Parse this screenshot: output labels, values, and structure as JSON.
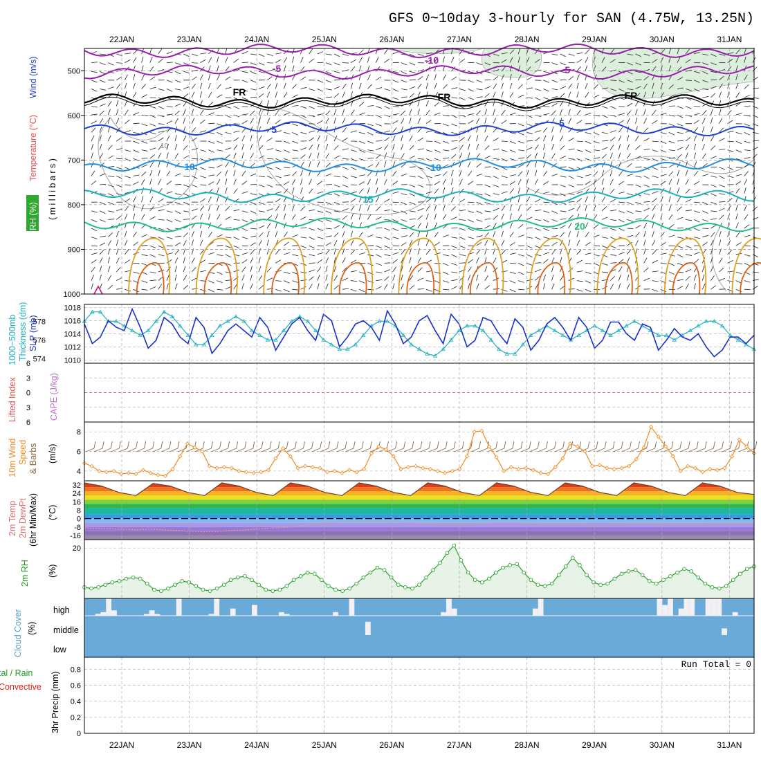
{
  "title": "GFS 0~10day 3-hourly for SAN (4.75W, 13.25N)",
  "dates": [
    "22JAN",
    "23JAN",
    "24JAN",
    "25JAN",
    "26JAN",
    "27JAN",
    "28JAN",
    "29JAN",
    "30JAN",
    "31JAN"
  ],
  "colors": {
    "purple": "#9a1db0",
    "black": "#000000",
    "blue": "#1f3fd0",
    "lightblue": "#1f8fe0",
    "cyan": "#1ab0b8",
    "green": "#20c080",
    "orange": "#e0a020",
    "darkorange": "#e06010",
    "slp": "#1630c8",
    "thick": "#20b0c0",
    "wind10m": "#f08a20",
    "rh": "#1a9a1a",
    "cloud": "#6aaad8",
    "precipgreen": "#20a020",
    "precipred": "#e02020"
  },
  "labels": {
    "upper_rh": "RH (%)",
    "upper_temp": "Temperature (°C)",
    "upper_wind": "Wind (m/s)",
    "upper_axis": "( m i l l i b a r s )",
    "thick_a": "1000~500mb",
    "thick_b": "Thickness (dm)",
    "slp": "SLP (mb)",
    "li": "Lifted Index",
    "cape": "CAPE (J/kg)",
    "w10_a": "10m Wind",
    "w10_b": "Speed",
    "w10_c": "& Barbs",
    "w10_unit": "(m/s)",
    "temp_a": "2m Temp",
    "temp_b": "2m DewPt",
    "temp_c": "(6hr Min/Max)",
    "temp_unit": "(°C)",
    "rh2m": "2m RH",
    "rh_unit": "(%)",
    "cloud": "Cloud Cover",
    "cloud_unit": "(%)",
    "cloud_high": "high",
    "cloud_middle": "middle",
    "cloud_low": "low",
    "precip_a": "tal / Rain",
    "precip_b": "Convective",
    "precip_axis": "3hr Precip (mm)",
    "run_total": "Run Total = 0"
  },
  "chart_data": [
    {
      "type": "line",
      "panel": "upper-air cross section",
      "y_axis": "millibars",
      "y_ticks": [
        500,
        600,
        700,
        800,
        900,
        1000
      ],
      "ylim": [
        1000,
        450
      ],
      "isotherm_labels": [
        "-10",
        "-5",
        "FR",
        "5",
        "10",
        "15",
        "20"
      ],
      "rh_contour_label": "10",
      "temperature_levels": [
        {
          "label": "-10",
          "color": "purple",
          "mean_pressure": 455
        },
        {
          "label": "-5",
          "color": "purple",
          "mean_pressure": 503
        },
        {
          "label": "FR",
          "color": "black",
          "mean_pressure": 568
        },
        {
          "label": "5",
          "color": "blue",
          "mean_pressure": 630
        },
        {
          "label": "10",
          "color": "lightblue",
          "mean_pressure": 712
        },
        {
          "label": "15",
          "color": "cyan",
          "mean_pressure": 780
        },
        {
          "label": "20",
          "color": "green",
          "mean_pressure": 845
        }
      ]
    },
    {
      "type": "line",
      "panel": "thickness and SLP",
      "series": [
        {
          "name": "SLP (mb)",
          "axis": "right",
          "ticks": [
            1010,
            1012,
            1014,
            1016,
            1018
          ],
          "values": [
            1015.5,
            1012.5,
            1013.5,
            1016,
            1015,
            1014.5,
            1017.8,
            1015,
            1011.8,
            1013,
            1016.5,
            1015.5,
            1013.5,
            1012.5,
            1016.5,
            1015,
            1011,
            1012.5,
            1014.5,
            1015.5,
            1014.5,
            1013.5,
            1016.5,
            1015,
            1011.5,
            1013.5,
            1015.5,
            1016.5,
            1014.5,
            1013,
            1017,
            1016,
            1012,
            1013.5,
            1015.5,
            1016,
            1015,
            1013,
            1017.5,
            1015.5,
            1012.5,
            1013.5,
            1016,
            1016.8,
            1014.5,
            1012.5,
            1017,
            1015.5,
            1012,
            1013,
            1016.5,
            1016,
            1014,
            1012.5,
            1016.3,
            1015,
            1011.5,
            1013,
            1015.5,
            1016.5,
            1015,
            1013,
            1016.5,
            1015,
            1011.8,
            1013,
            1015.8,
            1015.8,
            1014,
            1013,
            1015.5,
            1015,
            1011.5,
            1013,
            1014.8,
            1013.5,
            1013,
            1014,
            1012,
            1010.5,
            1011.5,
            1013.5,
            1013.5,
            1012.5,
            1013.8
          ]
        },
        {
          "name": "1000~500mb Thickness (dm)",
          "axis": "left",
          "ticks": [
            574,
            576,
            578
          ],
          "values": [
            578,
            579,
            579,
            578,
            578,
            577.5,
            577,
            576.5,
            577,
            578,
            579,
            578.5,
            577.5,
            576.5,
            575.5,
            575.5,
            576.5,
            577.5,
            578,
            578.5,
            578,
            577,
            576.5,
            576,
            576,
            577,
            578,
            578.5,
            578,
            577,
            576,
            575.5,
            575,
            575,
            575.5,
            576.5,
            577.5,
            578,
            578,
            577.5,
            576.5,
            575.5,
            575,
            574.5,
            574.3,
            575,
            576,
            577,
            577.5,
            577.5,
            577,
            576,
            575,
            574.5,
            574.5,
            575.5,
            576.5,
            577,
            577.5,
            577,
            576.5,
            576,
            576.5,
            577,
            577.5,
            577,
            576.5,
            577,
            577.5,
            578,
            577.5,
            577,
            576.5,
            576.5,
            576,
            576.5,
            577,
            577.5,
            578,
            578,
            577.5,
            576.5,
            576,
            575.5,
            575
          ]
        }
      ]
    },
    {
      "type": "line",
      "panel": "lifted index and CAPE",
      "y_ticks": [
        "6",
        "3",
        "0",
        "3",
        "6"
      ],
      "series": [
        {
          "name": "Lifted Index",
          "values": []
        },
        {
          "name": "CAPE (J/kg)",
          "values": []
        }
      ]
    },
    {
      "type": "line",
      "panel": "10m wind",
      "y_ticks": [
        4,
        6,
        8
      ],
      "ylim": [
        3,
        9
      ],
      "series": [
        {
          "name": "10m Wind Speed",
          "values": [
            4.8,
            4.5,
            4,
            3.9,
            4,
            3.7,
            3.8,
            3.7,
            4.1,
            3.8,
            3.6,
            3.5,
            4.2,
            5.5,
            6.8,
            6.4,
            6,
            4.5,
            4.3,
            4.4,
            4.3,
            4,
            3.9,
            3.8,
            3.9,
            4.1,
            5.3,
            6.3,
            5.5,
            4.3,
            4.5,
            4.4,
            4.3,
            3.9,
            4,
            3.8,
            4.1,
            3.9,
            4.2,
            5.8,
            6.5,
            6.2,
            5.5,
            4.2,
            4.4,
            4.5,
            4.3,
            4.2,
            4,
            3.8,
            4,
            4.2,
            5.5,
            8,
            8.1,
            6.5,
            5.4,
            4,
            4.4,
            4.2,
            4.3,
            4.1,
            3.8,
            3.7,
            4.4,
            5.3,
            6.8,
            6.5,
            6,
            4.5,
            4.6,
            4.3,
            4.2,
            4.3,
            4.5,
            5.2,
            6.4,
            8.5,
            7.5,
            6.5,
            5.5,
            4,
            4.5,
            4.3,
            3.9,
            4.2,
            4.1,
            4.3,
            5.5,
            7.2,
            6.5,
            5.8
          ]
        }
      ]
    },
    {
      "type": "area",
      "panel": "2m temperature and dewpoint",
      "y_ticks": [
        32,
        24,
        16,
        8,
        0,
        -8,
        -16
      ],
      "ylim": [
        -20,
        36
      ],
      "series": [
        {
          "name": "2m Temp",
          "values": [
            34,
            31,
            25,
            22,
            33.5,
            31,
            25,
            22,
            34,
            31,
            25,
            22,
            34,
            31,
            25,
            22,
            34,
            31,
            25,
            22,
            34,
            31,
            25,
            22,
            34,
            31,
            25,
            22,
            34,
            31,
            25,
            22,
            34,
            31,
            25,
            22,
            34,
            31,
            25,
            23
          ]
        },
        {
          "name": "2m DewPt",
          "values": [
            -9,
            -9.5,
            -10,
            -10.5,
            -10,
            -11,
            -12,
            -12.5,
            -12,
            -11,
            -10,
            -9,
            -8,
            -6,
            -4,
            -3,
            -2.5,
            -2,
            -3,
            -4,
            -4.5,
            -5,
            -5.5,
            -4.5,
            -4,
            -4,
            -4.5,
            -5,
            -5,
            -5.5,
            -6,
            -5,
            -4.5,
            -4.5,
            -5,
            -5,
            -5,
            -4.5,
            -4.5,
            -4.5
          ]
        }
      ]
    },
    {
      "type": "area",
      "panel": "2m RH",
      "y_ticks": [
        20
      ],
      "ylim": [
        0,
        24
      ],
      "series": [
        {
          "name": "2m RH",
          "values": [
            4,
            3.5,
            4,
            5,
            6,
            6.5,
            7.5,
            8,
            7.5,
            5.5,
            3,
            2.5,
            3.5,
            5,
            6.5,
            6,
            4.5,
            3,
            2.5,
            3.5,
            5,
            7,
            8,
            8.5,
            7,
            5,
            3,
            2.5,
            3,
            4.5,
            7,
            8.5,
            10,
            9.5,
            7,
            4.5,
            3,
            2.5,
            3.5,
            5.5,
            8,
            10,
            12,
            11,
            8,
            5,
            4,
            3.5,
            5,
            8,
            11,
            14,
            18,
            21,
            15,
            10,
            7,
            6,
            7.5,
            10,
            12,
            13,
            13.5,
            10,
            7,
            5,
            4.5,
            5.5,
            9,
            12.5,
            16,
            13,
            9,
            6,
            5,
            5.5,
            7.5,
            9.5,
            10.5,
            11,
            9,
            6.5,
            5.5,
            7,
            8.5,
            10,
            11.5,
            10.5,
            8,
            5.5,
            4,
            3.5,
            4.5,
            7,
            9.5,
            11.5,
            12.5
          ]
        }
      ]
    },
    {
      "type": "bar",
      "panel": "cloud cover",
      "y_ticks": [
        "high",
        "middle",
        "low"
      ],
      "series": [
        {
          "name": "high",
          "values": [
            0,
            0,
            10,
            20,
            100,
            30,
            0,
            0,
            0,
            0,
            0,
            10,
            30,
            10,
            0,
            0,
            0,
            100,
            0,
            0,
            0,
            0,
            0,
            10,
            100,
            0,
            0,
            40,
            0,
            0,
            0,
            60,
            0,
            0,
            0,
            0,
            20,
            10,
            0,
            0,
            0,
            0,
            0,
            0,
            0,
            0,
            20,
            0,
            0,
            100,
            0,
            0,
            0,
            0,
            0,
            0,
            0,
            0,
            0,
            0,
            0,
            0,
            0,
            0,
            0,
            0,
            20,
            100,
            40,
            0,
            0,
            0,
            0,
            0,
            0,
            0,
            0,
            0,
            0,
            0,
            0,
            0,
            0,
            40,
            100,
            0,
            0,
            0,
            0,
            0,
            0,
            0,
            0,
            0,
            0,
            0,
            0,
            0,
            0,
            0,
            0,
            0,
            0,
            0,
            0,
            0,
            100,
            60,
            100,
            0,
            40,
            100,
            100,
            0,
            0,
            100,
            100,
            100,
            0,
            0,
            20,
            0,
            0,
            0
          ]
        },
        {
          "name": "middle",
          "values": [
            0,
            0,
            0,
            0,
            0,
            0,
            0,
            0,
            0,
            0,
            0,
            0,
            0,
            0,
            0,
            0,
            0,
            0,
            0,
            0,
            0,
            0,
            0,
            0,
            0,
            0,
            0,
            0,
            0,
            0,
            0,
            0,
            0,
            0,
            0,
            0,
            0,
            0,
            0,
            0,
            0,
            0,
            0,
            0,
            0,
            0,
            0,
            0,
            0,
            0,
            0,
            0,
            80,
            0,
            0,
            0,
            0,
            0,
            0,
            0,
            0,
            0,
            0,
            0,
            0,
            0,
            0,
            0,
            0,
            0,
            0,
            0,
            0,
            0,
            0,
            0,
            0,
            0,
            0,
            0,
            0,
            0,
            0,
            0,
            0,
            0,
            0,
            0,
            0,
            0,
            0,
            0,
            0,
            0,
            0,
            0,
            0,
            0,
            0,
            0,
            0,
            0,
            0,
            0,
            0,
            0,
            0,
            0,
            0,
            0,
            0,
            0,
            0,
            0,
            0,
            0,
            0,
            0,
            40,
            0,
            0,
            0,
            0,
            0
          ]
        },
        {
          "name": "low",
          "values": []
        }
      ]
    },
    {
      "type": "bar",
      "panel": "3hr precipitation",
      "y_ticks": [
        0,
        0.2,
        0.4,
        0.6,
        0.8
      ],
      "ylim": [
        0,
        0.95
      ],
      "series": [
        {
          "name": "Total / Rain",
          "values": []
        },
        {
          "name": "Convective",
          "values": []
        }
      ],
      "run_total": 0
    }
  ]
}
